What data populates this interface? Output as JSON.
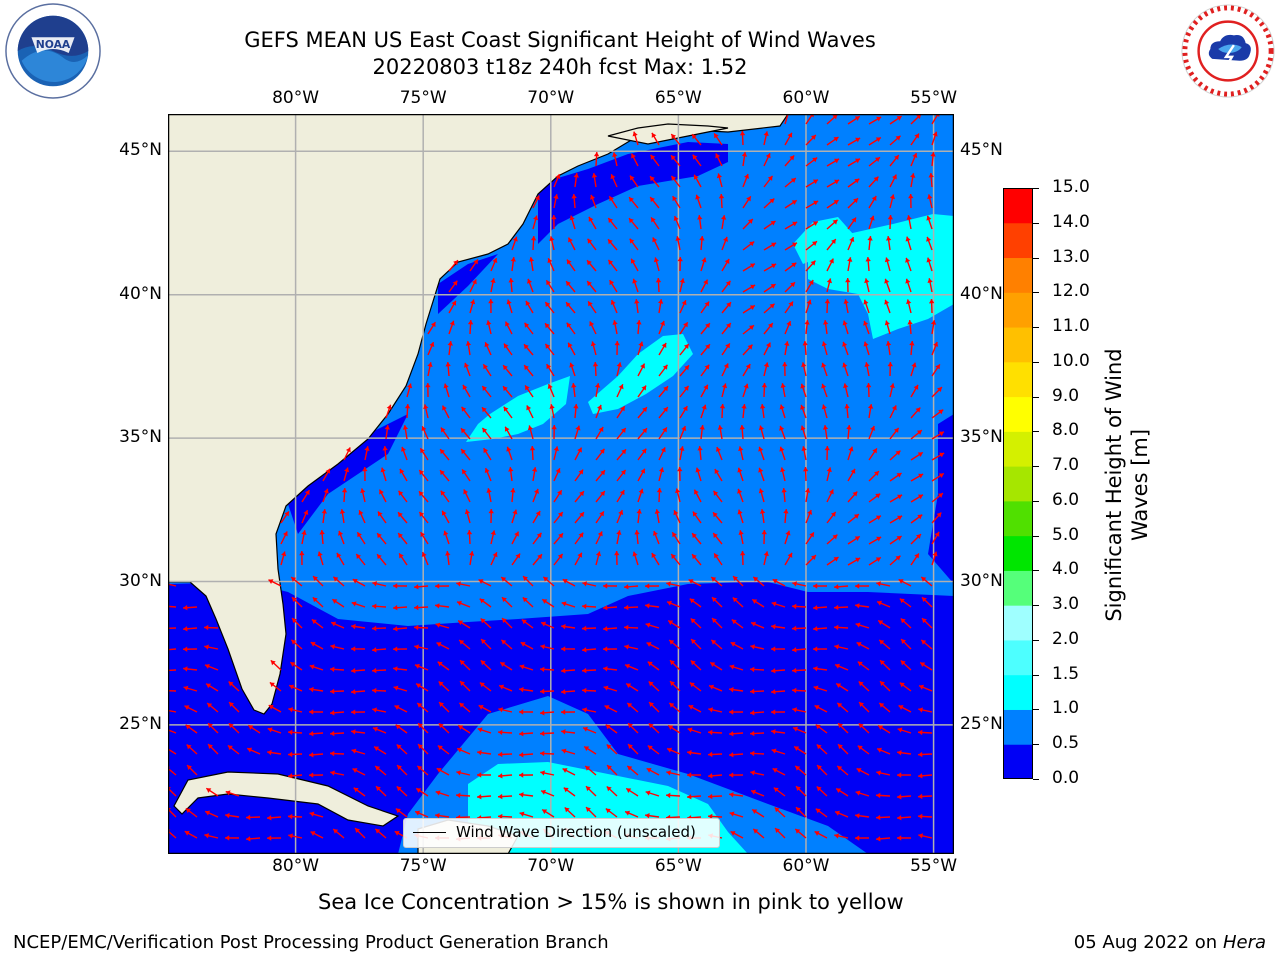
{
  "title": {
    "line1": "GEFS MEAN US East Coast Significant Height of Wind Waves",
    "line2": "20220803 t18z 240h fcst   Max: 1.52"
  },
  "map": {
    "lon_labels": [
      "80°W",
      "75°W",
      "70°W",
      "65°W",
      "60°W",
      "55°W"
    ],
    "lat_labels": [
      "45°N",
      "40°N",
      "35°N",
      "30°N",
      "25°N"
    ],
    "lon_values": [
      -80,
      -75,
      -70,
      -65,
      -60,
      -55
    ],
    "lat_values": [
      45,
      40,
      35,
      30,
      25
    ],
    "extent": {
      "lon": [
        -85,
        -54.2
      ],
      "lat": [
        20.5,
        46.3
      ]
    },
    "legend_label": "Wind Wave Direction (unscaled)"
  },
  "colorbar": {
    "title_line1": "Significant Height of Wind",
    "title_line2": "Waves [m]",
    "tick_labels": [
      "0.0",
      "0.5",
      "1.0",
      "1.5",
      "2.0",
      "3.0",
      "4.0",
      "5.0",
      "6.0",
      "7.0",
      "8.0",
      "9.0",
      "10.0",
      "11.0",
      "12.0",
      "13.0",
      "14.0",
      "15.0"
    ],
    "colors": [
      "#0000f5",
      "#0080ff",
      "#00ffff",
      "#4dffff",
      "#9fffff",
      "#55ff7a",
      "#00e600",
      "#50e000",
      "#a6e600",
      "#d4f000",
      "#ffff00",
      "#ffe000",
      "#ffc000",
      "#ffa000",
      "#ff8000",
      "#ff4000",
      "#ff0000"
    ]
  },
  "colors": {
    "land": "#efeedc",
    "deep_blue": "#0000f5",
    "mid_blue": "#0080ff",
    "cyan": "#00ffff",
    "arrow": "#ff0000",
    "grid": "#b0b0b0"
  },
  "icons": {
    "left": "noaa-logo",
    "right": "nws-logo"
  },
  "footer": {
    "note": "Sea Ice Concentration > 15% is shown in pink to yellow",
    "left": "NCEP/EMC/Verification Post Processing Product Generation Branch",
    "right_date": "05 Aug 2022 on",
    "right_machine": "Hera"
  }
}
